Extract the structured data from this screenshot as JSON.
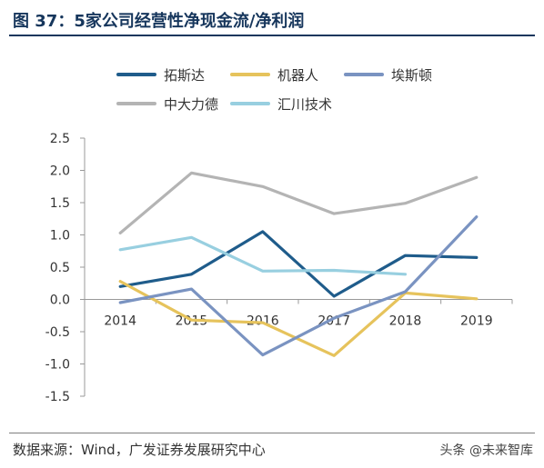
{
  "header": {
    "title": "图 37：5家公司经营性净现金流/净利润"
  },
  "chart_data": {
    "type": "line",
    "categories": [
      "2014",
      "2015",
      "2016",
      "2017",
      "2018",
      "2019"
    ],
    "ylim": [
      -1.5,
      2.5
    ],
    "yticks": [
      "2.5",
      "2.0",
      "1.5",
      "1.0",
      "0.5",
      "0.0",
      "-0.5",
      "-1.0",
      "-1.5"
    ],
    "ytick_values": [
      2.5,
      2.0,
      1.5,
      1.0,
      0.5,
      0.0,
      -0.5,
      -1.0,
      -1.5
    ],
    "grid": false,
    "legend_position": "top",
    "series": [
      {
        "name": "拓斯达",
        "color": "#1f5c8b",
        "values": [
          0.2,
          0.39,
          1.05,
          0.05,
          0.68,
          0.65
        ]
      },
      {
        "name": "机器人",
        "color": "#e6c35c",
        "values": [
          0.28,
          -0.32,
          -0.36,
          -0.87,
          0.1,
          0.01
        ]
      },
      {
        "name": "埃斯顿",
        "color": "#7a93c1",
        "values": [
          -0.05,
          0.16,
          -0.86,
          -0.29,
          0.12,
          1.28
        ]
      },
      {
        "name": "中大力德",
        "color": "#b4b4b4",
        "values": [
          1.03,
          1.96,
          1.75,
          1.33,
          1.49,
          1.89
        ]
      },
      {
        "name": "汇川技术",
        "color": "#98cfe0",
        "values": [
          0.77,
          0.96,
          0.44,
          0.45,
          0.39,
          null
        ]
      }
    ]
  },
  "footer": {
    "source": "数据来源：Wind，广发证券发展研究中心",
    "watermark": "头条 @未来智库"
  }
}
